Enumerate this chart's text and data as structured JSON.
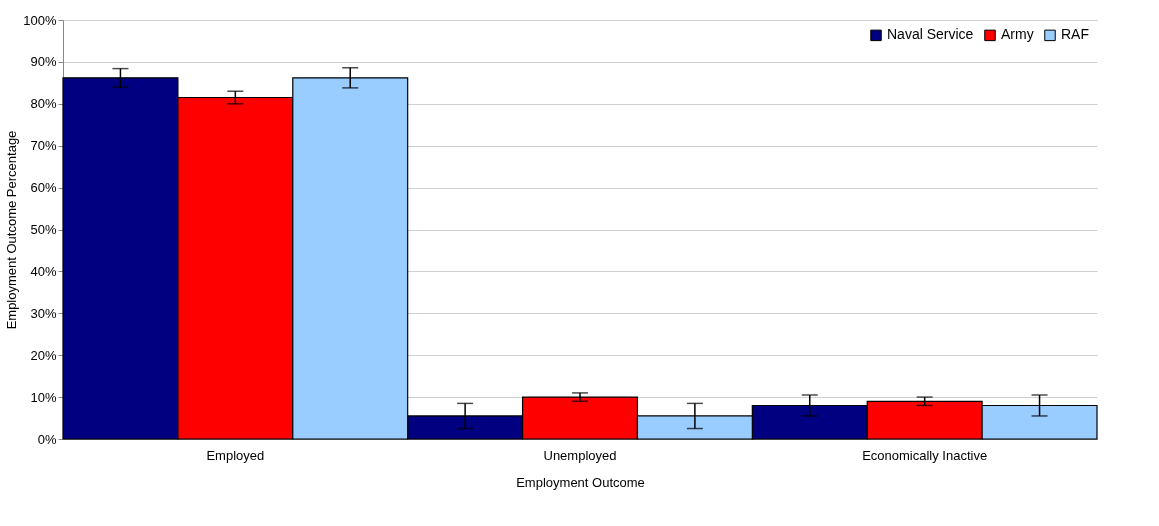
{
  "chart_data": {
    "type": "bar",
    "xlabel": "Employment Outcome",
    "ylabel": "Employment Outcome Percentage",
    "categories": [
      "Employed",
      "Unemployed",
      "Economically Inactive"
    ],
    "series": [
      {
        "name": "Naval Service",
        "color": "#000080",
        "values": [
          86.2,
          5.5,
          8
        ],
        "errors": [
          2.2,
          3,
          2.5
        ]
      },
      {
        "name": "Army",
        "color": "#ff0000",
        "values": [
          81.5,
          10,
          9
        ],
        "errors": [
          1.5,
          1,
          1
        ]
      },
      {
        "name": "RAF",
        "color": "#99ccff",
        "values": [
          86.2,
          5.5,
          8
        ],
        "errors": [
          2.4,
          3,
          2.5
        ]
      }
    ],
    "ylim": [
      0,
      100
    ],
    "yticks": [
      {
        "value": 0,
        "label": "0%"
      },
      {
        "value": 10,
        "label": "10%"
      },
      {
        "value": 20,
        "label": "20%"
      },
      {
        "value": 30,
        "label": "30%"
      },
      {
        "value": 40,
        "label": "40%"
      },
      {
        "value": 50,
        "label": "50%"
      },
      {
        "value": 60,
        "label": "60%"
      },
      {
        "value": 70,
        "label": "70%"
      },
      {
        "value": 80,
        "label": "80%"
      },
      {
        "value": 90,
        "label": "90%"
      },
      {
        "value": 100,
        "label": "100%"
      }
    ],
    "grid": "y",
    "legend": "top right"
  }
}
